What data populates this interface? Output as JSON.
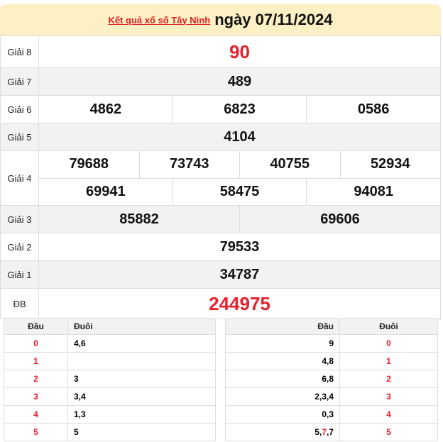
{
  "header": {
    "link": "Kết quả xổ số Tây Ninh",
    "date": "ngày 07/11/2024"
  },
  "prizes": [
    {
      "label": "Giải 8",
      "rows": [
        [
          "90"
        ]
      ]
    },
    {
      "label": "Giải 7",
      "rows": [
        [
          "489"
        ]
      ]
    },
    {
      "label": "Giải 6",
      "rows": [
        [
          "4862",
          "6823",
          "0586"
        ]
      ]
    },
    {
      "label": "Giải 5",
      "rows": [
        [
          "4104"
        ]
      ]
    },
    {
      "label": "Giải 4",
      "rows": [
        [
          "79688",
          "73743",
          "40755",
          "52934"
        ],
        [
          "69941",
          "58475",
          "94081"
        ]
      ]
    },
    {
      "label": "Giải 3",
      "rows": [
        [
          "85882",
          "69606"
        ]
      ]
    },
    {
      "label": "Giải 2",
      "rows": [
        [
          "79533"
        ]
      ]
    },
    {
      "label": "Giải 1",
      "rows": [
        [
          "34787"
        ]
      ]
    },
    {
      "label": "ĐB",
      "rows": [
        [
          "244975"
        ]
      ]
    }
  ],
  "dau_table": {
    "headers": [
      "Đầu",
      "Đuôi"
    ],
    "rows": [
      [
        "0",
        "4,6"
      ],
      [
        "1",
        ""
      ],
      [
        "2",
        "3"
      ],
      [
        "3",
        "3,4"
      ],
      [
        "4",
        "1,3"
      ],
      [
        "5",
        "5"
      ]
    ]
  },
  "duoi_table": {
    "headers": [
      "Đầu",
      "Đuôi"
    ],
    "rows": [
      {
        "dau": [
          {
            "v": "9"
          }
        ],
        "duoi": "0"
      },
      {
        "dau": [
          {
            "v": "4,8"
          }
        ],
        "duoi": "1"
      },
      {
        "dau": [
          {
            "v": "6,8"
          }
        ],
        "duoi": "2"
      },
      {
        "dau": [
          {
            "v": "2,3,4"
          }
        ],
        "duoi": "3"
      },
      {
        "dau": [
          {
            "v": "0,3"
          }
        ],
        "duoi": "4"
      },
      {
        "dau": [
          {
            "v": "5,"
          },
          {
            "v": "7",
            "hl": true
          },
          {
            "v": ",7"
          }
        ],
        "duoi": "5"
      }
    ]
  },
  "colors": {
    "red": "#e8212d",
    "header_bg": "#fdf0c4",
    "row_alt": "#f2f2f2"
  }
}
